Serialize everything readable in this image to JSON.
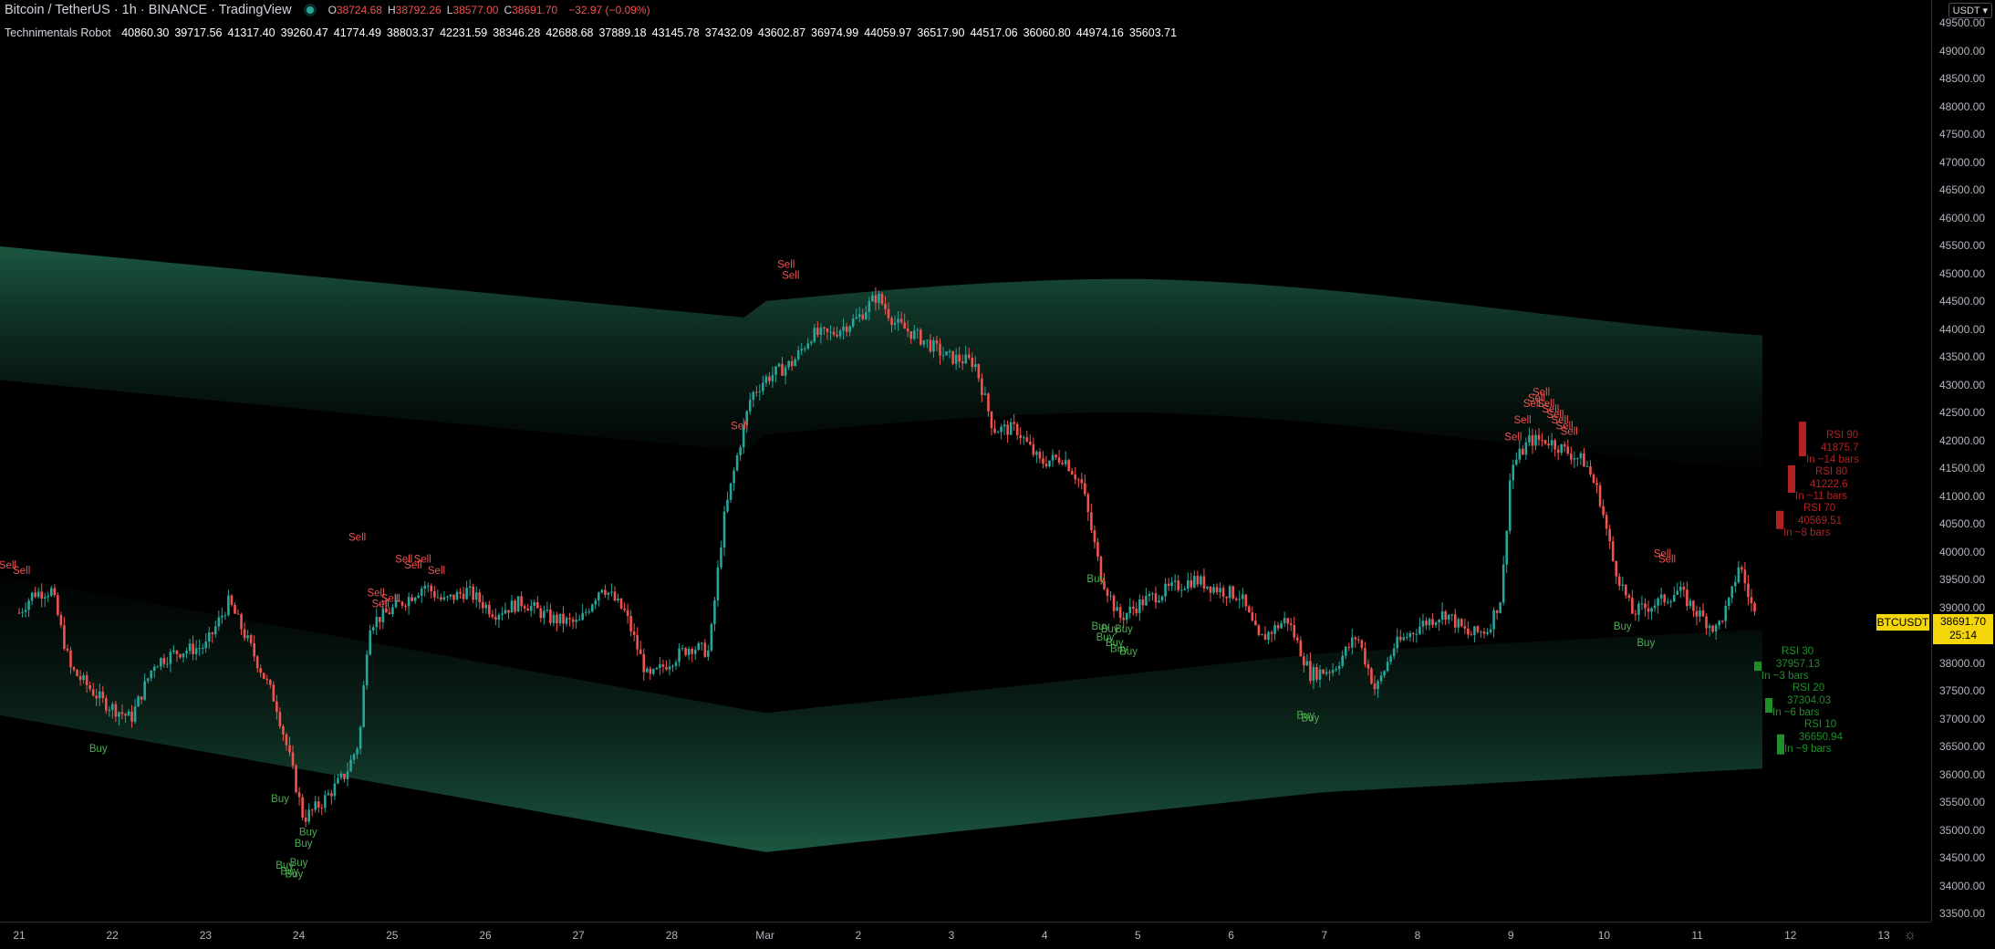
{
  "header": {
    "symbol_title": "Bitcoin / TetherUS · 1h · BINANCE · TradingView",
    "ohlc": [
      {
        "label": "O",
        "value": "38724.68"
      },
      {
        "label": "H",
        "value": "38792.26"
      },
      {
        "label": "L",
        "value": "38577.00"
      },
      {
        "label": "C",
        "value": "38691.70"
      }
    ],
    "change": "−32.97 (−0.09%)",
    "status_color": "#26a69a"
  },
  "indicator": {
    "name": "Technimentals Robot",
    "values": [
      "40860.30",
      "39717.56",
      "41317.40",
      "39260.47",
      "41774.49",
      "38803.37",
      "42231.59",
      "38346.28",
      "42688.68",
      "37889.18",
      "43145.78",
      "37432.09",
      "43602.87",
      "36974.99",
      "44059.97",
      "36517.90",
      "44517.06",
      "36060.80",
      "44974.16",
      "35603.71"
    ]
  },
  "currency_button": "USDT",
  "price_axis": {
    "ticks": [
      "49500.00",
      "49000.00",
      "48500.00",
      "48000.00",
      "47500.00",
      "47000.00",
      "46500.00",
      "46000.00",
      "45500.00",
      "45000.00",
      "44500.00",
      "44000.00",
      "43500.00",
      "43000.00",
      "42500.00",
      "42000.00",
      "41500.00",
      "41000.00",
      "40500.00",
      "40000.00",
      "39500.00",
      "39000.00",
      "38500.00",
      "38000.00",
      "37500.00",
      "37000.00",
      "36500.00",
      "36000.00",
      "35500.00",
      "35000.00",
      "34500.00",
      "34000.00",
      "33500.00"
    ],
    "current_price": "38691.70",
    "countdown": "25:14",
    "symbol_label": "BTCUSDT"
  },
  "time_axis": {
    "ticks": [
      "21",
      "22",
      "23",
      "24",
      "25",
      "26",
      "27",
      "28",
      "Mar",
      "2",
      "3",
      "4",
      "5",
      "6",
      "7",
      "8",
      "9",
      "10",
      "11",
      "12",
      "13"
    ]
  },
  "colors": {
    "up": "#26a69a",
    "down": "#ef5350",
    "band": "#1e5a43",
    "sell_text": "#f05252",
    "buy_text": "#4caf50",
    "rsi_high": "#b22222",
    "rsi_low": "#1f8f2a"
  },
  "signals": {
    "sell": [
      "Sell",
      "Sell",
      "Sell",
      "Sell",
      "Sell",
      "Sell",
      "Sell",
      "Sell",
      "Sell",
      "Sell",
      "Sell",
      "Sell",
      "Sell",
      "Sell",
      "Sell",
      "Sell",
      "Sell",
      "Sell",
      "Sell",
      "Sell",
      "Sell",
      "Sell",
      "Sell",
      "Sell",
      "Sell",
      "Sell"
    ],
    "buy": [
      "Buy",
      "Buy",
      "Buy",
      "Buy",
      "Buy",
      "Buy",
      "Buy",
      "Buy",
      "Buy",
      "Buy",
      "Buy",
      "Buy",
      "Buy",
      "Buy",
      "Buy",
      "Buy",
      "Buy",
      "Buy",
      "Buy",
      "Buy"
    ]
  },
  "rsi_levels": [
    {
      "label": "RSI 90",
      "price": "41875.7",
      "bars": "In ~14 bars",
      "level": 90
    },
    {
      "label": "RSI 80",
      "price": "41222.6",
      "bars": "In ~11 bars",
      "level": 80
    },
    {
      "label": "RSI 70",
      "price": "40569.51",
      "bars": "In ~8 bars",
      "level": 70
    },
    {
      "label": "RSI 30",
      "price": "37957.13",
      "bars": "In ~3 bars",
      "level": 30
    },
    {
      "label": "RSI 20",
      "price": "37304.03",
      "bars": "In ~6 bars",
      "level": 20
    },
    {
      "label": "RSI 10",
      "price": "36650.94",
      "bars": "In ~9 bars",
      "level": 10
    }
  ]
}
